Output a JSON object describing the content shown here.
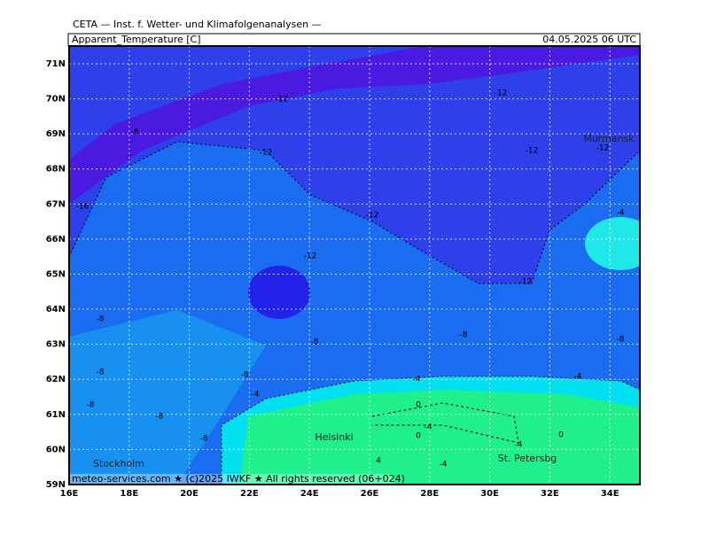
{
  "header": {
    "source": "CETA — Inst. f. Wetter- und Klimafolgenanalysen —"
  },
  "map": {
    "title": "Apparent_Temperature [C]",
    "valid": "04.05.2025 06 UTC",
    "lat_labels": [
      "71N",
      "70N",
      "69N",
      "68N",
      "67N",
      "66N",
      "65N",
      "64N",
      "63N",
      "62N",
      "61N",
      "60N",
      "59N"
    ],
    "lon_labels": [
      "16E",
      "18E",
      "20E",
      "22E",
      "24E",
      "26E",
      "28E",
      "30E",
      "32E",
      "34E"
    ],
    "contour_labels": [
      "-12",
      "-12",
      "-8",
      "-12",
      "-12",
      "-12",
      "-16",
      "-12",
      "-4",
      "-12",
      "-12",
      "-8",
      "-8",
      "-8",
      "-8",
      "-8",
      "-8",
      "-8",
      "-4",
      "-4",
      "-4",
      "0",
      "-4",
      "0",
      "-4",
      "0",
      "4",
      "-4",
      "-8",
      "-8"
    ],
    "cities": [
      "Murmansk",
      "Helsinki",
      "St. Petersbg",
      "Stockholm"
    ],
    "footer": "meteo-services.com ★ (c)2025 IWKF ★ All rights reserved (06+024)"
  }
}
